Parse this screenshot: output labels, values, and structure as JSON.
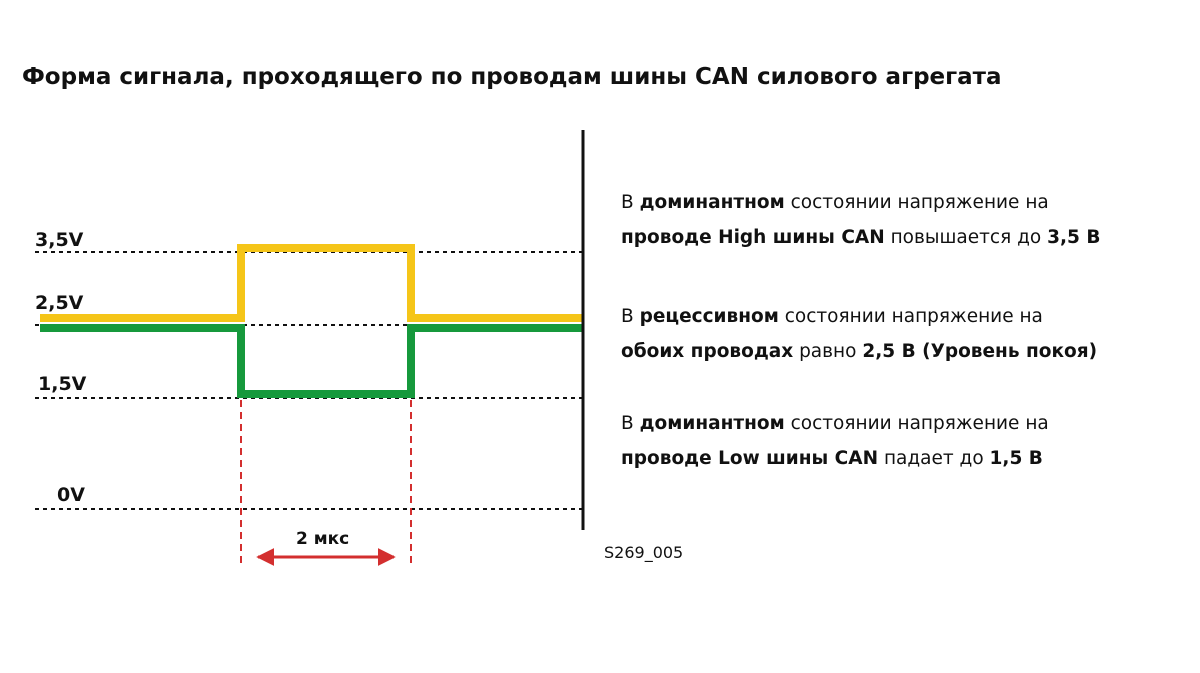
{
  "title": "Форма сигнала, проходящего по проводам шины CAN силового агрегата",
  "chart_data": {
    "type": "line",
    "levels": [
      "3,5V",
      "2,5V",
      "1,5V",
      "0V"
    ],
    "series": [
      {
        "line": "can-high",
        "color": "#f5c518",
        "values_v": [
          2.5,
          3.5,
          2.5
        ]
      },
      {
        "line": "can-low",
        "color": "#16993c",
        "values_v": [
          2.5,
          1.5,
          2.5
        ]
      }
    ],
    "duration_label": "2 мкс",
    "code": "S269_005"
  },
  "descriptions": [
    {
      "line1": {
        "t1": "В ",
        "b1": "доминантном",
        "t2": " состоянии напряжение на"
      },
      "line2": {
        "b1": "проводе High шины CAN",
        "t2": " повышается до ",
        "b2": "3,5 В",
        "t3": ""
      }
    },
    {
      "line1": {
        "t1": "В ",
        "b1": "рецессивном",
        "t2": " состоянии напряжение на"
      },
      "line2": {
        "b1": "обоих проводах",
        "t2": " равно ",
        "b2": "2,5 В (Уровень покоя)",
        "t3": ""
      }
    },
    {
      "line1": {
        "t1": "В ",
        "b1": "доминантном",
        "t2": " состоянии напряжение на"
      },
      "line2": {
        "b1": "проводе Low шины CAN",
        "t2": " падает до ",
        "b2": "1,5 В",
        "t3": ""
      }
    }
  ],
  "colors": {
    "high": "#f5c518",
    "low": "#16993c",
    "marker": "#d32f2f",
    "axis": "#111111"
  }
}
